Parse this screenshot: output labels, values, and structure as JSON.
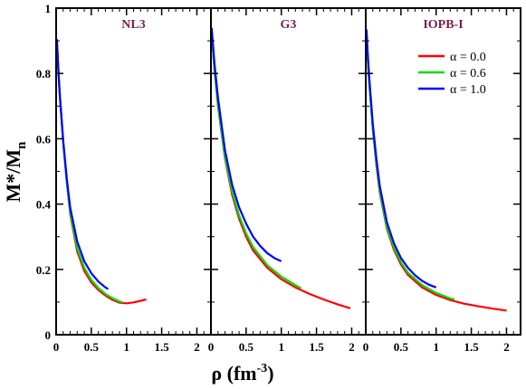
{
  "chart_data": [
    {
      "type": "line",
      "title": "NL3",
      "xlabel": "ρ (fm⁻³)",
      "ylabel": "M*/Mn",
      "xlim": [
        0,
        2.2
      ],
      "ylim": [
        0,
        1
      ],
      "series": [
        {
          "name": "α = 0.0",
          "color": "#ff0000",
          "x": [
            0.01,
            0.03,
            0.05,
            0.1,
            0.15,
            0.2,
            0.3,
            0.4,
            0.5,
            0.6,
            0.7,
            0.8,
            0.9,
            1.0,
            1.1,
            1.2,
            1.28
          ],
          "y": [
            0.905,
            0.82,
            0.74,
            0.59,
            0.47,
            0.37,
            0.255,
            0.195,
            0.16,
            0.137,
            0.12,
            0.107,
            0.098,
            0.096,
            0.099,
            0.104,
            0.108
          ]
        },
        {
          "name": "α = 0.6",
          "color": "#00dd00",
          "x": [
            0.01,
            0.03,
            0.05,
            0.1,
            0.15,
            0.2,
            0.3,
            0.4,
            0.5,
            0.6,
            0.7,
            0.8,
            0.9,
            0.95
          ],
          "y": [
            0.905,
            0.82,
            0.74,
            0.59,
            0.47,
            0.375,
            0.265,
            0.205,
            0.168,
            0.143,
            0.125,
            0.112,
            0.102,
            0.098
          ]
        },
        {
          "name": "α = 1.0",
          "color": "#0000ff",
          "x": [
            0.01,
            0.03,
            0.05,
            0.1,
            0.15,
            0.2,
            0.3,
            0.4,
            0.5,
            0.6,
            0.7,
            0.74
          ],
          "y": [
            0.905,
            0.82,
            0.74,
            0.595,
            0.48,
            0.39,
            0.285,
            0.225,
            0.188,
            0.163,
            0.145,
            0.14
          ]
        }
      ]
    },
    {
      "type": "line",
      "title": "G3",
      "xlim": [
        0,
        2.2
      ],
      "ylim": [
        0,
        1
      ],
      "series": [
        {
          "name": "α = 0.0",
          "color": "#ff0000",
          "x": [
            0.01,
            0.05,
            0.1,
            0.2,
            0.3,
            0.4,
            0.5,
            0.6,
            0.8,
            1.0,
            1.2,
            1.4,
            1.6,
            1.8,
            1.98
          ],
          "y": [
            0.93,
            0.81,
            0.7,
            0.54,
            0.43,
            0.355,
            0.3,
            0.258,
            0.205,
            0.17,
            0.145,
            0.125,
            0.108,
            0.093,
            0.081
          ]
        },
        {
          "name": "α = 0.6",
          "color": "#00dd00",
          "x": [
            0.01,
            0.05,
            0.1,
            0.2,
            0.3,
            0.4,
            0.5,
            0.6,
            0.8,
            1.0,
            1.2,
            1.28
          ],
          "y": [
            0.93,
            0.81,
            0.705,
            0.545,
            0.44,
            0.365,
            0.31,
            0.268,
            0.213,
            0.178,
            0.152,
            0.142
          ]
        },
        {
          "name": "α = 1.0",
          "color": "#0000ff",
          "x": [
            0.01,
            0.05,
            0.1,
            0.2,
            0.3,
            0.4,
            0.5,
            0.6,
            0.7,
            0.8,
            0.9,
            1.0
          ],
          "y": [
            0.94,
            0.83,
            0.725,
            0.565,
            0.46,
            0.39,
            0.34,
            0.3,
            0.272,
            0.25,
            0.235,
            0.225
          ]
        }
      ]
    },
    {
      "type": "line",
      "title": "IOPB-I",
      "xlim": [
        0,
        2.2
      ],
      "ylim": [
        0,
        1
      ],
      "legend_position": "top-right",
      "series": [
        {
          "name": "α = 0.0",
          "color": "#ff0000",
          "x": [
            0.01,
            0.03,
            0.05,
            0.1,
            0.15,
            0.2,
            0.3,
            0.4,
            0.5,
            0.6,
            0.8,
            1.0,
            1.2,
            1.4,
            1.6,
            1.8,
            2.0
          ],
          "y": [
            0.925,
            0.84,
            0.77,
            0.63,
            0.52,
            0.435,
            0.325,
            0.26,
            0.215,
            0.183,
            0.145,
            0.122,
            0.106,
            0.095,
            0.087,
            0.08,
            0.074
          ]
        },
        {
          "name": "α = 0.6",
          "color": "#00dd00",
          "x": [
            0.01,
            0.03,
            0.05,
            0.1,
            0.15,
            0.2,
            0.3,
            0.4,
            0.5,
            0.6,
            0.8,
            1.0,
            1.2,
            1.26
          ],
          "y": [
            0.925,
            0.84,
            0.77,
            0.63,
            0.525,
            0.44,
            0.33,
            0.267,
            0.222,
            0.19,
            0.152,
            0.128,
            0.111,
            0.108
          ]
        },
        {
          "name": "α = 1.0",
          "color": "#0000ff",
          "x": [
            0.01,
            0.03,
            0.05,
            0.1,
            0.15,
            0.2,
            0.3,
            0.4,
            0.5,
            0.6,
            0.7,
            0.8,
            0.9,
            1.0
          ],
          "y": [
            0.935,
            0.855,
            0.785,
            0.645,
            0.54,
            0.455,
            0.345,
            0.28,
            0.235,
            0.205,
            0.182,
            0.165,
            0.153,
            0.145
          ]
        }
      ]
    }
  ],
  "axes": {
    "y_title_main": "M*/M",
    "y_title_sub": "n",
    "x_title_main": "ρ  (fm",
    "x_title_sup": "-3",
    "x_title_end": ")",
    "x_ticks": [
      "0",
      "0.5",
      "1",
      "1.5",
      "2"
    ],
    "x_tick_values": [
      0,
      0.5,
      1,
      1.5,
      2
    ],
    "y_ticks": [
      "0",
      "0.2",
      "0.4",
      "0.6",
      "0.8",
      "1"
    ],
    "y_tick_values": [
      0,
      0.2,
      0.4,
      0.6,
      0.8,
      1
    ]
  },
  "panel_title_color": "#7a1f4b",
  "legend_entries": [
    "α = 0.0",
    "α = 0.6",
    "α = 1.0"
  ]
}
